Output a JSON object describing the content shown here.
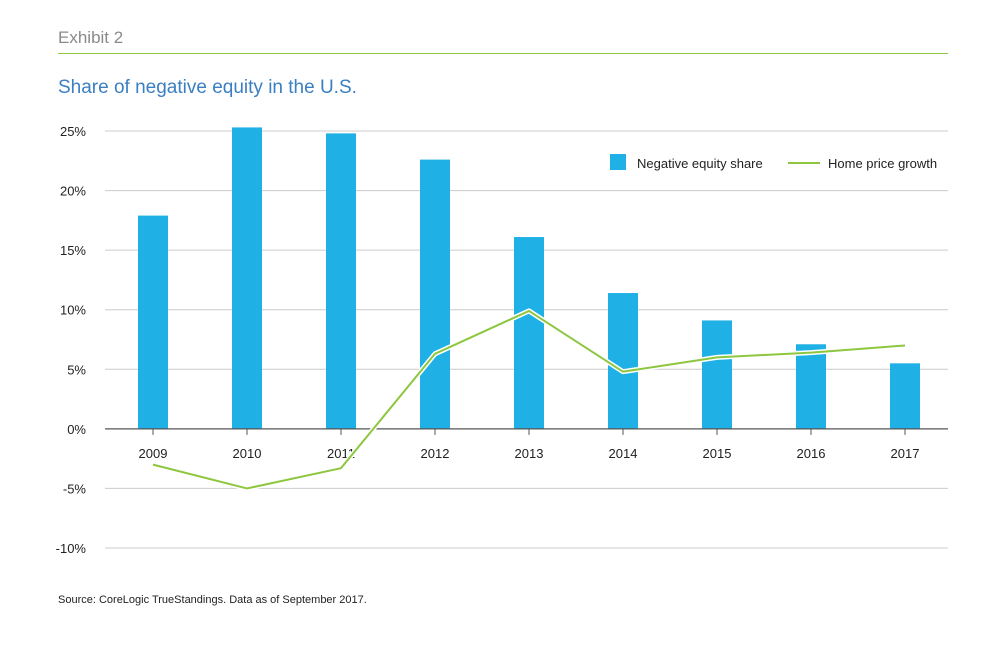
{
  "header": {
    "exhibit": "Exhibit 2",
    "title": "Share of negative equity in the U.S."
  },
  "footer": {
    "source": "Source: CoreLogic TrueStandings. Data as of September 2017."
  },
  "colors": {
    "bar": "#1fb1e6",
    "line": "#8dc63f",
    "grid": "#cccccc",
    "axis": "#555555",
    "text": "#222222"
  },
  "chart_data": {
    "type": "bar",
    "categories": [
      "2009",
      "2010",
      "2011",
      "2012",
      "2013",
      "2014",
      "2015",
      "2016",
      "2017"
    ],
    "ylim": [
      -10,
      25
    ],
    "yticks": [
      25,
      20,
      15,
      10,
      5,
      0,
      -5,
      -10
    ],
    "ytick_labels": [
      "25%",
      "20%",
      "15%",
      "10%",
      "5%",
      "0%",
      "-5%",
      "-10%"
    ],
    "grid": true,
    "legend_position": "top-right",
    "series": [
      {
        "name": "Negative equity share",
        "type": "bar",
        "values": [
          17.9,
          25.3,
          24.8,
          22.6,
          16.1,
          11.4,
          9.1,
          7.1,
          5.5
        ]
      },
      {
        "name": "Home price growth",
        "type": "line",
        "values": [
          -3.0,
          -5.0,
          -3.3,
          6.3,
          9.9,
          4.8,
          6.0,
          6.4,
          7.0
        ]
      }
    ]
  }
}
